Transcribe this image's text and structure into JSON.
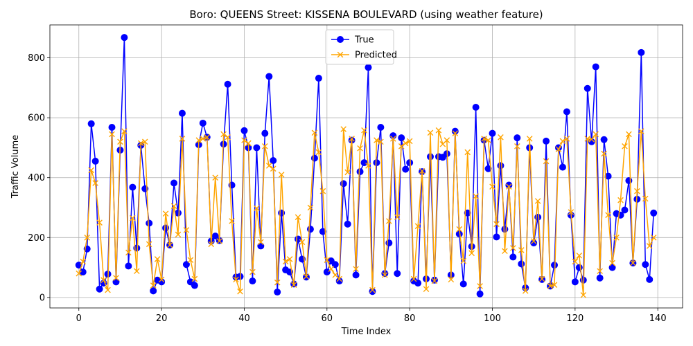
{
  "chart_data": {
    "type": "line",
    "title": "Boro: QUEENS Street: KISSENA BOULEVARD (using weather feature)",
    "xlabel": "Time Index",
    "ylabel": "Traffic Volume",
    "xlim": [
      -7,
      146
    ],
    "ylim": [
      -35,
      910
    ],
    "xticks": [
      0,
      20,
      40,
      60,
      80,
      100,
      120,
      140
    ],
    "yticks": [
      0,
      200,
      400,
      600,
      800
    ],
    "grid": true,
    "legend_position": "top-center",
    "series": [
      {
        "name": "True",
        "color": "#0000ff",
        "marker": "circle",
        "values": [
          108,
          85,
          162,
          580,
          455,
          28,
          48,
          78,
          568,
          52,
          492,
          868,
          105,
          368,
          165,
          508,
          363,
          248,
          22,
          58,
          52,
          232,
          175,
          382,
          282,
          615,
          110,
          52,
          40,
          510,
          582,
          535,
          188,
          205,
          190,
          512,
          712,
          375,
          68,
          70,
          557,
          500,
          55,
          500,
          172,
          548,
          738,
          457,
          18,
          282,
          92,
          85,
          45,
          195,
          128,
          68,
          228,
          465,
          732,
          220,
          85,
          122,
          110,
          55,
          380,
          245,
          525,
          75,
          420,
          450,
          768,
          20,
          450,
          568,
          80,
          182,
          540,
          80,
          533,
          428,
          450,
          55,
          48,
          420,
          62,
          470,
          58,
          470,
          468,
          480,
          75,
          555,
          212,
          45,
          282,
          170,
          635,
          12,
          525,
          430,
          548,
          202,
          440,
          228,
          375,
          135,
          533,
          112,
          32,
          500,
          182,
          268,
          60,
          522,
          38,
          108,
          500,
          435,
          620,
          275,
          52,
          100,
          58,
          698,
          520,
          770,
          65,
          527,
          405,
          100,
          280,
          275,
          292,
          390,
          115,
          328,
          818,
          110,
          60,
          282
        ]
      },
      {
        "name": "Predicted",
        "color": "#ffa500",
        "marker": "x",
        "values": [
          80,
          120,
          200,
          425,
          382,
          250,
          58,
          25,
          545,
          65,
          520,
          555,
          150,
          265,
          88,
          515,
          520,
          178,
          40,
          128,
          60,
          280,
          175,
          305,
          210,
          530,
          225,
          125,
          62,
          525,
          530,
          535,
          178,
          400,
          188,
          545,
          535,
          255,
          60,
          20,
          525,
          515,
          85,
          298,
          185,
          505,
          440,
          430,
          50,
          410,
          120,
          128,
          42,
          268,
          185,
          70,
          300,
          550,
          485,
          355,
          125,
          95,
          75,
          62,
          562,
          418,
          530,
          95,
          498,
          558,
          440,
          25,
          525,
          520,
          75,
          255,
          530,
          268,
          505,
          515,
          522,
          62,
          238,
          422,
          28,
          550,
          55,
          558,
          512,
          525,
          60,
          548,
          228,
          122,
          485,
          148,
          338,
          38,
          530,
          525,
          370,
          245,
          535,
          155,
          370,
          165,
          505,
          158,
          22,
          530,
          188,
          322,
          62,
          455,
          38,
          42,
          495,
          522,
          530,
          285,
          120,
          140,
          8,
          530,
          528,
          545,
          88,
          480,
          275,
          115,
          200,
          325,
          505,
          545,
          115,
          355,
          555,
          330,
          172,
          200
        ]
      }
    ]
  }
}
